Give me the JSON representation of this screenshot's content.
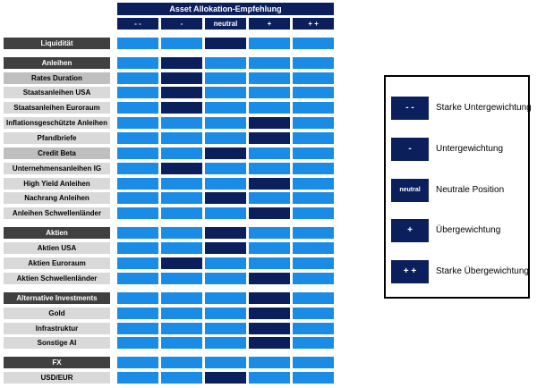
{
  "header": {
    "title": "Asset Allokation-Empfehlung",
    "columns": [
      "- -",
      "-",
      "neutral",
      "+",
      "+ +"
    ]
  },
  "rows": [
    {
      "label": "Liquidität",
      "style": "cat",
      "selected": 2
    },
    {
      "label": "Anleihen",
      "style": "cat",
      "selected": 1
    },
    {
      "label": "Rates Duration",
      "style": "subdark",
      "selected": 1
    },
    {
      "label": "Staatsanleihen USA",
      "style": "sub",
      "selected": 1
    },
    {
      "label": "Staatsanleihen Euroraum",
      "style": "sub",
      "selected": 1
    },
    {
      "label": "Inflationsgeschützte Anleihen",
      "style": "sub",
      "selected": 3
    },
    {
      "label": "Pfandbriefe",
      "style": "sub",
      "selected": 3
    },
    {
      "label": "Credit Beta",
      "style": "subdark",
      "selected": 2
    },
    {
      "label": "Unternehmensanleihen IG",
      "style": "sub",
      "selected": 1
    },
    {
      "label": "High Yield Anleihen",
      "style": "sub",
      "selected": 3
    },
    {
      "label": "Nachrang Anleihen",
      "style": "sub",
      "selected": 2
    },
    {
      "label": "Anleihen Schwellenländer",
      "style": "sub",
      "selected": 3
    },
    {
      "label": "Aktien",
      "style": "cat",
      "selected": 2
    },
    {
      "label": "Aktien USA",
      "style": "sub",
      "selected": 2
    },
    {
      "label": "Aktien Euroraum",
      "style": "sub",
      "selected": 1
    },
    {
      "label": "Aktien Schwellenländer",
      "style": "sub",
      "selected": 3
    },
    {
      "label": "Alternative Investments",
      "style": "cat",
      "selected": 3
    },
    {
      "label": "Gold",
      "style": "sub",
      "selected": 3
    },
    {
      "label": "Infrastruktur",
      "style": "sub",
      "selected": 3
    },
    {
      "label": "Sonstige AI",
      "style": "sub",
      "selected": 3
    },
    {
      "label": "FX",
      "style": "cat",
      "selected": null
    },
    {
      "label": "USD/EUR",
      "style": "sub",
      "selected": 2
    }
  ],
  "legend": [
    {
      "symbol": "- -",
      "text": "Starke Untergewichtung"
    },
    {
      "symbol": "-",
      "text": "Untergewichtung"
    },
    {
      "symbol": "neutral",
      "text": "Neutrale Position"
    },
    {
      "symbol": "+",
      "text": "Übergewichtung"
    },
    {
      "symbol": "+ +",
      "text": "Starke Übergewichtung"
    }
  ],
  "colors": {
    "navy": "#0b1f5c",
    "blue": "#1a8ce6",
    "category_bg": "#404040",
    "sub_bg": "#d9d9d9",
    "subdark_bg": "#bfbfbf"
  }
}
